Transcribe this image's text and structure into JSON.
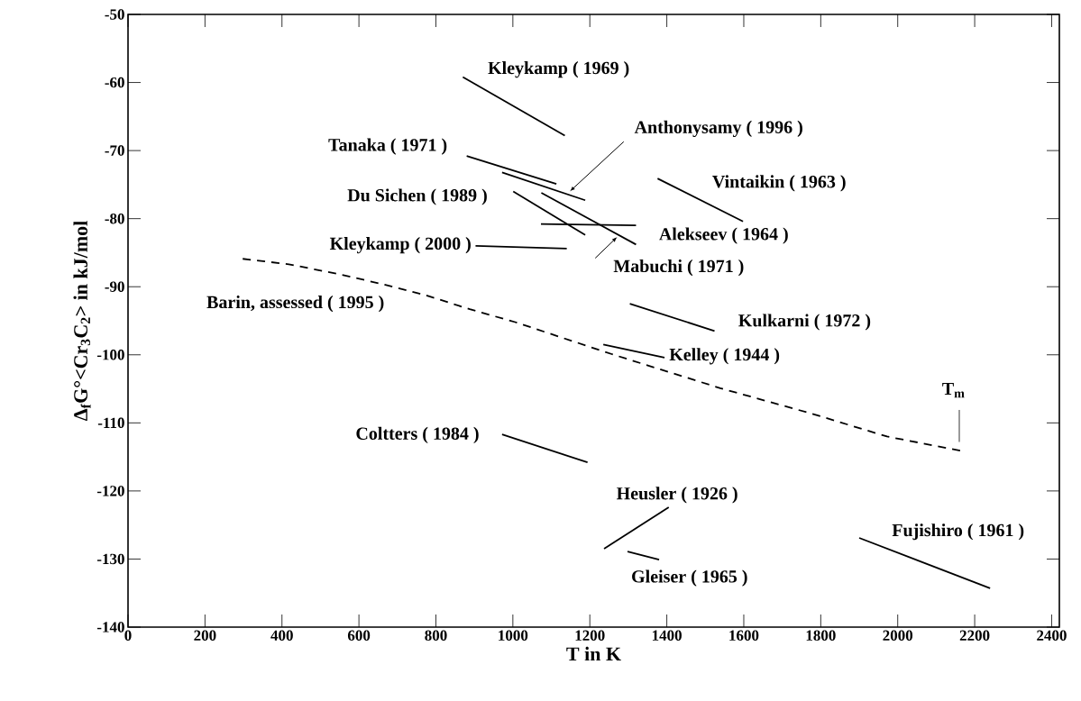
{
  "chart_data": {
    "type": "line",
    "xlabel": "T in K",
    "ylabel": "Δ$_{f}$G°<Cr$_{3}$C$_{2}$> in kJ/mol",
    "xlim": [
      0,
      2420
    ],
    "ylim": [
      -140,
      -50
    ],
    "xticks": [
      0,
      200,
      400,
      600,
      800,
      1000,
      1200,
      1400,
      1600,
      1800,
      2000,
      2200,
      2400
    ],
    "yticks": [
      -140,
      -130,
      -120,
      -110,
      -100,
      -90,
      -80,
      -70,
      -60,
      -50
    ],
    "line_style": "solid",
    "marker": "none",
    "series": [
      {
        "name": "Kleykamp ( 1969 )",
        "color": "#000000",
        "x": [
          870,
          1135
        ],
        "values": [
          -59.2,
          -67.8
        ]
      },
      {
        "name": "Anthonysamy ( 1996 )",
        "color": "#000000",
        "x": [
          972,
          1188
        ],
        "values": [
          -73.2,
          -77.3
        ]
      },
      {
        "name": "Tanaka ( 1971 )",
        "color": "#000000",
        "x": [
          880,
          1113
        ],
        "values": [
          -70.8,
          -74.9
        ]
      },
      {
        "name": "Vintaikin ( 1963 )",
        "color": "#000000",
        "x": [
          1376,
          1598
        ],
        "values": [
          -74.1,
          -80.4
        ]
      },
      {
        "name": "Du Sichen ( 1989 )",
        "color": "#000000",
        "x": [
          1001,
          1188
        ],
        "values": [
          -76.0,
          -82.4
        ]
      },
      {
        "name": "Alekseev ( 1964 )",
        "color": "#000000",
        "x": [
          1073,
          1320
        ],
        "values": [
          -80.8,
          -81.0
        ]
      },
      {
        "name": "Kleykamp ( 2000 )",
        "color": "#000000",
        "x": [
          903,
          1140
        ],
        "values": [
          -84.0,
          -84.4
        ]
      },
      {
        "name": "Mabuchi ( 1971 )",
        "color": "#000000",
        "x": [
          1074,
          1320
        ],
        "values": [
          -76.2,
          -83.8
        ]
      },
      {
        "name": "Barin, assessed ( 1995 )",
        "color": "#000000",
        "line_style": "dashed",
        "x": [
          298,
          418,
          543,
          660,
          771,
          888,
          1006,
          1257,
          1539,
          1774,
          1972,
          2165
        ],
        "values": [
          -85.9,
          -86.7,
          -88.1,
          -89.6,
          -91.2,
          -93.3,
          -95.2,
          -99.9,
          -104.9,
          -108.6,
          -112.0,
          -114.1
        ]
      },
      {
        "name": "Kulkarni ( 1972 )",
        "color": "#000000",
        "x": [
          1304,
          1524
        ],
        "values": [
          -92.5,
          -96.5
        ]
      },
      {
        "name": "Kelley ( 1944 )",
        "color": "#000000",
        "x": [
          1235,
          1394
        ],
        "values": [
          -98.5,
          -100.4
        ]
      },
      {
        "name": "Coltters ( 1984 )",
        "color": "#000000",
        "x": [
          972,
          1194
        ],
        "values": [
          -111.7,
          -115.8
        ]
      },
      {
        "name": "Heusler ( 1926 )",
        "color": "#000000",
        "x": [
          1237,
          1405
        ],
        "values": [
          -128.5,
          -122.4
        ]
      },
      {
        "name": "Gleiser ( 1965 )",
        "color": "#000000",
        "x": [
          1298,
          1380
        ],
        "values": [
          -128.9,
          -130.1
        ]
      },
      {
        "name": "Fujishiro ( 1961 )",
        "color": "#000000",
        "x": [
          1900,
          2240
        ],
        "values": [
          -126.9,
          -134.3
        ]
      }
    ],
    "annotations": [
      {
        "text": "T$_{m}$",
        "x": 2165,
        "y": -114.1
      }
    ]
  }
}
